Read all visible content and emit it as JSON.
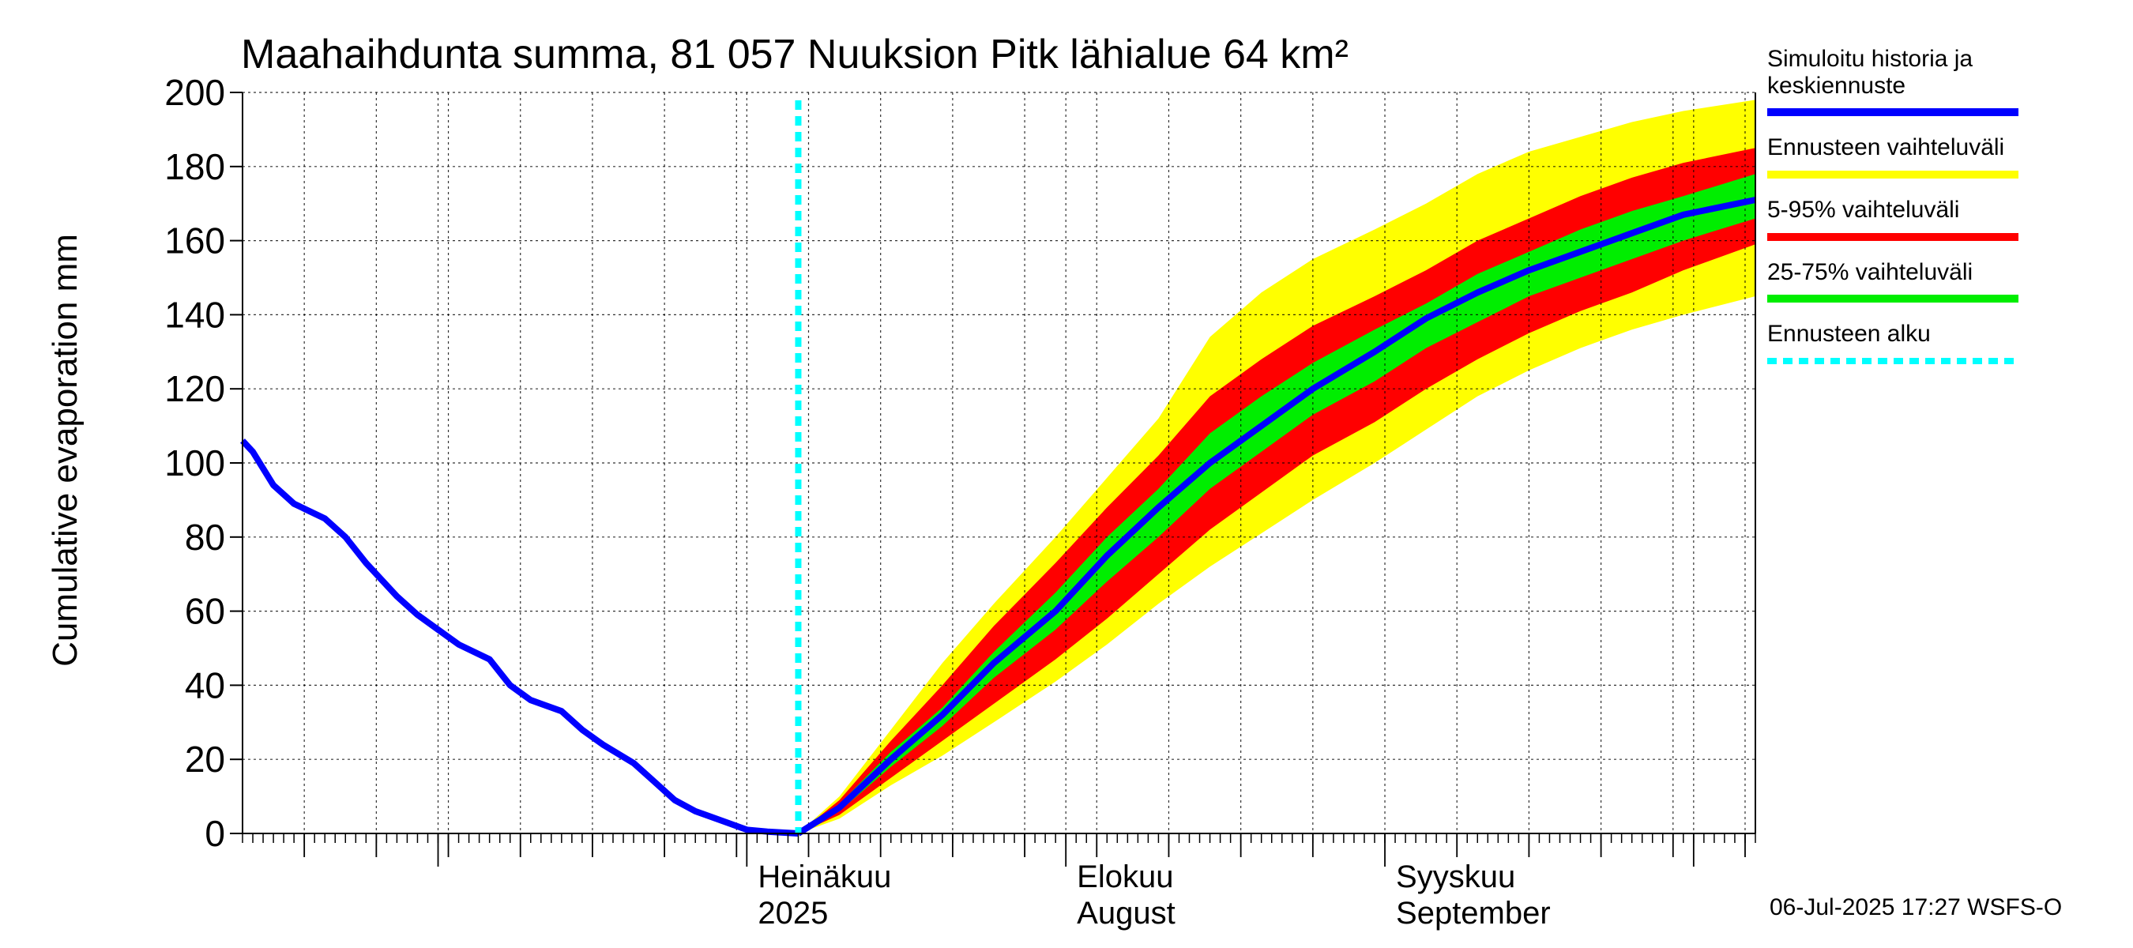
{
  "chart_data": {
    "type": "area",
    "title": "Maahaihdunta summa, 81 057 Nuuksion Pitk lähialue 64 km²",
    "ylabel": "Cumulative evaporation   mm",
    "xlabel": "",
    "ylim": [
      0,
      200
    ],
    "yticks": [
      0,
      20,
      40,
      60,
      80,
      100,
      120,
      140,
      160,
      180,
      200
    ],
    "grid": true,
    "legend_position": "right",
    "x_domain": [
      "2025-05-13",
      "2025-10-07"
    ],
    "forecast_start": "2025-07-06",
    "month_labels": [
      {
        "date": "2025-07-01",
        "line1": "Heinäkuu",
        "line2": "2025"
      },
      {
        "date": "2025-08-01",
        "line1": "Elokuu",
        "line2": "August"
      },
      {
        "date": "2025-09-01",
        "line1": "Syyskuu",
        "line2": "September"
      }
    ],
    "legend": [
      {
        "label": "Simuloitu historia ja keskiennuste",
        "color": "#0000ff"
      },
      {
        "label": "Ennusteen vaihteluväli",
        "color": "#ffff00"
      },
      {
        "label": "5-95% vaihteluväli",
        "color": "#ff0000"
      },
      {
        "label": "25-75% vaihteluväli",
        "color": "#00ee00"
      },
      {
        "label": "Ennusteen alku",
        "color": "#00ffff"
      }
    ],
    "history": {
      "name": "Simuloitu historia ja keskiennuste",
      "x": [
        "2025-05-13",
        "2025-05-14",
        "2025-05-16",
        "2025-05-18",
        "2025-05-21",
        "2025-05-23",
        "2025-05-25",
        "2025-05-28",
        "2025-05-30",
        "2025-06-01",
        "2025-06-03",
        "2025-06-06",
        "2025-06-08",
        "2025-06-10",
        "2025-06-13",
        "2025-06-15",
        "2025-06-17",
        "2025-06-20",
        "2025-06-22",
        "2025-06-24",
        "2025-06-26",
        "2025-06-29",
        "2025-07-01",
        "2025-07-03",
        "2025-07-06"
      ],
      "y": [
        106,
        103,
        94,
        89,
        85,
        80,
        73,
        64,
        59,
        55,
        51,
        47,
        40,
        36,
        33,
        28,
        24,
        19,
        14,
        9,
        6,
        3,
        1,
        0.5,
        0
      ]
    },
    "forecast": {
      "x": [
        "2025-07-06",
        "2025-07-10",
        "2025-07-15",
        "2025-07-20",
        "2025-07-25",
        "2025-07-31",
        "2025-08-05",
        "2025-08-10",
        "2025-08-15",
        "2025-08-20",
        "2025-08-25",
        "2025-08-31",
        "2025-09-05",
        "2025-09-10",
        "2025-09-15",
        "2025-09-20",
        "2025-09-25",
        "2025-09-30",
        "2025-10-07"
      ],
      "series": [
        {
          "name": "Ennusteen vaihteluväli (max)",
          "values": [
            0,
            10,
            28,
            46,
            62,
            80,
            96,
            112,
            134,
            146,
            155,
            163,
            170,
            178,
            184,
            188,
            192,
            195,
            198
          ]
        },
        {
          "name": "5-95% ylä",
          "values": [
            0,
            9,
            25,
            40,
            56,
            73,
            88,
            102,
            118,
            128,
            137,
            145,
            152,
            160,
            166,
            172,
            177,
            181,
            185
          ]
        },
        {
          "name": "25-75% ylä",
          "values": [
            0,
            8,
            22,
            34,
            49,
            65,
            80,
            93,
            108,
            118,
            127,
            136,
            143,
            151,
            157,
            163,
            168,
            172,
            178
          ]
        },
        {
          "name": "Keskiennuste",
          "values": [
            0,
            7,
            20,
            32,
            46,
            60,
            75,
            88,
            100,
            110,
            120,
            130,
            139,
            146,
            152,
            157,
            162,
            167,
            171
          ]
        },
        {
          "name": "25-75% ala",
          "values": [
            0,
            6,
            18,
            29,
            42,
            55,
            68,
            80,
            93,
            103,
            113,
            122,
            131,
            138,
            145,
            150,
            155,
            160,
            166
          ]
        },
        {
          "name": "5-95% ala",
          "values": [
            0,
            5,
            15,
            25,
            35,
            47,
            58,
            70,
            82,
            92,
            102,
            111,
            120,
            128,
            135,
            141,
            146,
            152,
            159
          ]
        },
        {
          "name": "Ennusteen vaihteluväli (min)",
          "values": [
            0,
            4,
            13,
            21,
            30,
            41,
            51,
            62,
            72,
            81,
            90,
            100,
            109,
            118,
            125,
            131,
            136,
            140,
            145
          ]
        }
      ]
    }
  },
  "footer": {
    "timestamp": "06-Jul-2025 17:27 WSFS-O"
  }
}
